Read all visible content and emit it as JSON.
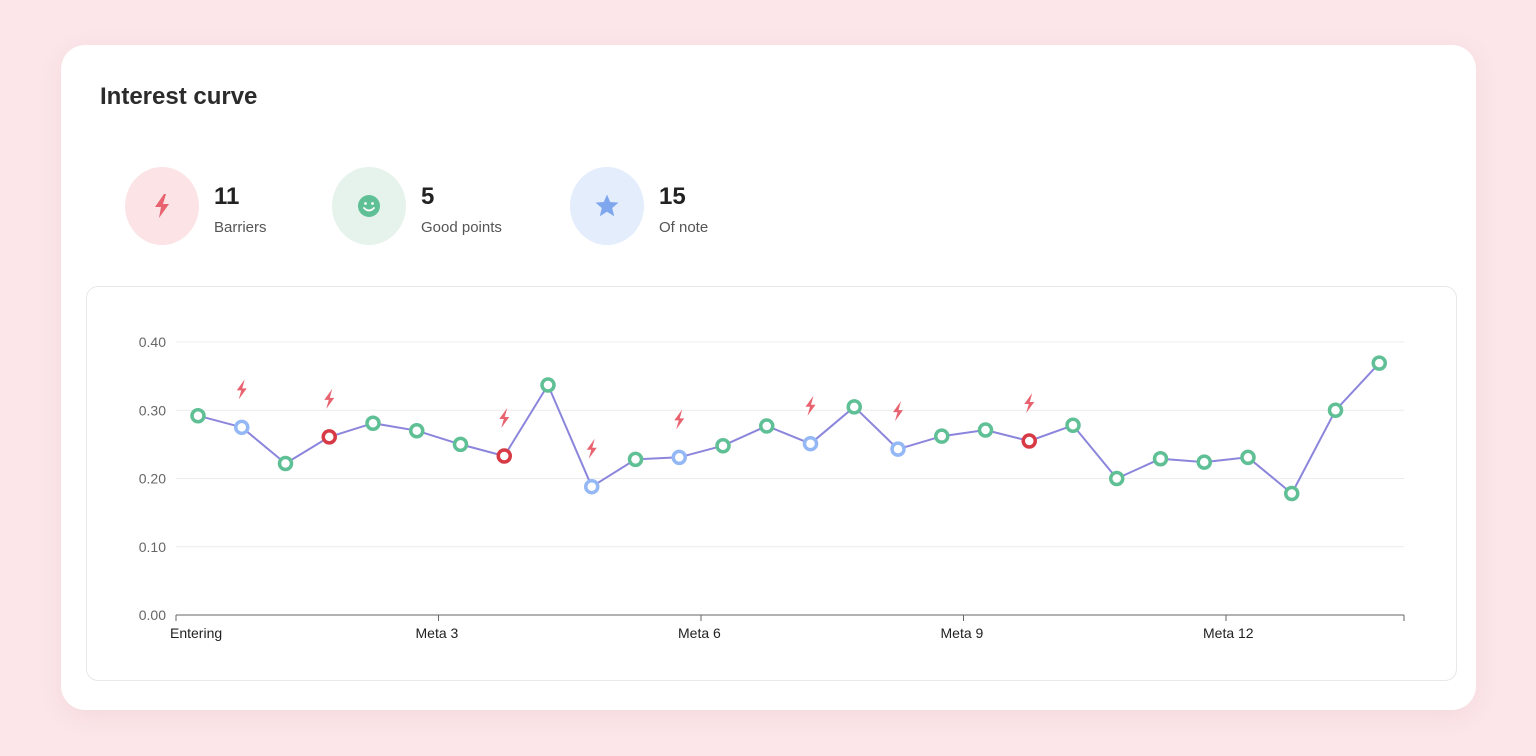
{
  "header": {
    "title": "Interest curve"
  },
  "stats": [
    {
      "value": "11",
      "label": "Barriers",
      "icon": "lightning-icon",
      "bg": "#fbe3e6",
      "fg": "#e8636f"
    },
    {
      "value": "5",
      "label": "Good points",
      "icon": "smiley-icon",
      "bg": "#e6f3ec",
      "fg": "#5fbf95"
    },
    {
      "value": "15",
      "label": "Of note",
      "icon": "star-icon",
      "bg": "#e3edfc",
      "fg": "#7ea7ee"
    }
  ],
  "colors": {
    "line": "#8b86dc",
    "good": "#5fbf95",
    "note": "#93b8f5",
    "barrier": "#d83a45",
    "barrier_icon": "#e8636f",
    "grid": "#ececec"
  },
  "chart_data": {
    "type": "line",
    "ylim": [
      0,
      0.4
    ],
    "y_ticks": [
      "0.00",
      "0.10",
      "0.20",
      "0.30",
      "0.40"
    ],
    "x_tick_labels": [
      "Entering",
      "Meta 3",
      "Meta 6",
      "Meta 9",
      "Meta 12"
    ],
    "x_tick_positions": [
      0,
      6,
      12,
      18,
      24
    ],
    "grid": true,
    "points": [
      {
        "y": 0.292,
        "kind": "good",
        "barrier": false
      },
      {
        "y": 0.275,
        "kind": "note",
        "barrier": true
      },
      {
        "y": 0.222,
        "kind": "good",
        "barrier": false
      },
      {
        "y": 0.261,
        "kind": "barrier",
        "barrier": true
      },
      {
        "y": 0.281,
        "kind": "good",
        "barrier": false
      },
      {
        "y": 0.27,
        "kind": "good",
        "barrier": false
      },
      {
        "y": 0.25,
        "kind": "good",
        "barrier": false
      },
      {
        "y": 0.233,
        "kind": "barrier",
        "barrier": true
      },
      {
        "y": 0.337,
        "kind": "good",
        "barrier": false
      },
      {
        "y": 0.188,
        "kind": "note",
        "barrier": true
      },
      {
        "y": 0.228,
        "kind": "good",
        "barrier": false
      },
      {
        "y": 0.231,
        "kind": "note",
        "barrier": true
      },
      {
        "y": 0.248,
        "kind": "good",
        "barrier": false
      },
      {
        "y": 0.277,
        "kind": "good",
        "barrier": false
      },
      {
        "y": 0.251,
        "kind": "note",
        "barrier": true
      },
      {
        "y": 0.305,
        "kind": "good",
        "barrier": false
      },
      {
        "y": 0.243,
        "kind": "note",
        "barrier": true
      },
      {
        "y": 0.262,
        "kind": "good",
        "barrier": false
      },
      {
        "y": 0.271,
        "kind": "good",
        "barrier": false
      },
      {
        "y": 0.255,
        "kind": "barrier",
        "barrier": true
      },
      {
        "y": 0.278,
        "kind": "good",
        "barrier": false
      },
      {
        "y": 0.2,
        "kind": "good",
        "barrier": false
      },
      {
        "y": 0.229,
        "kind": "good",
        "barrier": false
      },
      {
        "y": 0.224,
        "kind": "good",
        "barrier": false
      },
      {
        "y": 0.231,
        "kind": "good",
        "barrier": false
      },
      {
        "y": 0.178,
        "kind": "good",
        "barrier": false
      },
      {
        "y": 0.3,
        "kind": "good",
        "barrier": false
      },
      {
        "y": 0.369,
        "kind": "good",
        "barrier": false
      }
    ]
  }
}
